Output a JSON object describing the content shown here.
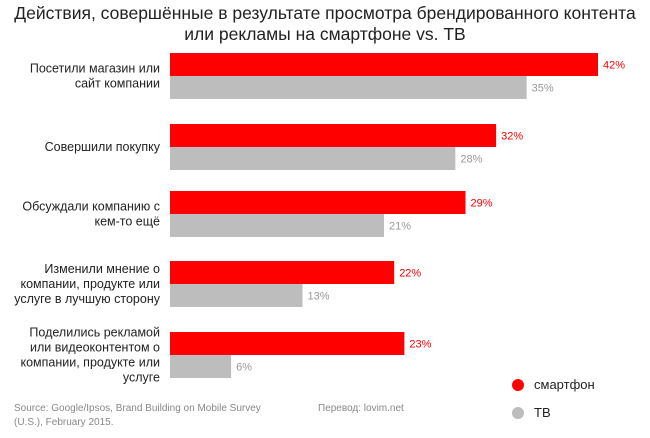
{
  "title_lines": [
    "Действия, совершённые в результате просмотра брендированного контента",
    "или рекламы на смартфоне vs. ТВ"
  ],
  "source_lines": [
    "Source: Google/Ipsos, Brand Building on Mobile Survey",
    "(U.S.), February 2015."
  ],
  "translation_credit": "Перевод: lovim.net",
  "colors": {
    "smartphone": "#ff0000",
    "tv": "#bdbdbd",
    "smartphone_label": "#ff0000",
    "tv_label": "#999999"
  },
  "chart_data": {
    "type": "bar",
    "orientation": "horizontal",
    "categories": [
      [
        "Посетили магазин или",
        "сайт компании"
      ],
      [
        "Совершили покупку"
      ],
      [
        "Обсуждали компанию с",
        "кем-то ещё"
      ],
      [
        "Изменили мнение о",
        "компании, продукте или",
        "услуге в лучшую сторону"
      ],
      [
        "Поделились рекламой",
        "или видеоконтентом о",
        "компании, продукте или",
        "услуге"
      ]
    ],
    "series": [
      {
        "name": "смартфон",
        "values": [
          42,
          32,
          29,
          22,
          23
        ],
        "labels": [
          "42%",
          "32%",
          "29%",
          "22%",
          "23%"
        ]
      },
      {
        "name": "ТВ",
        "values": [
          35,
          28,
          21,
          13,
          6
        ],
        "labels": [
          "35%",
          "28%",
          "21%",
          "13%",
          "6%"
        ]
      }
    ],
    "xlim": [
      0,
      42
    ],
    "grid": false,
    "legend_position": "bottom-right"
  }
}
